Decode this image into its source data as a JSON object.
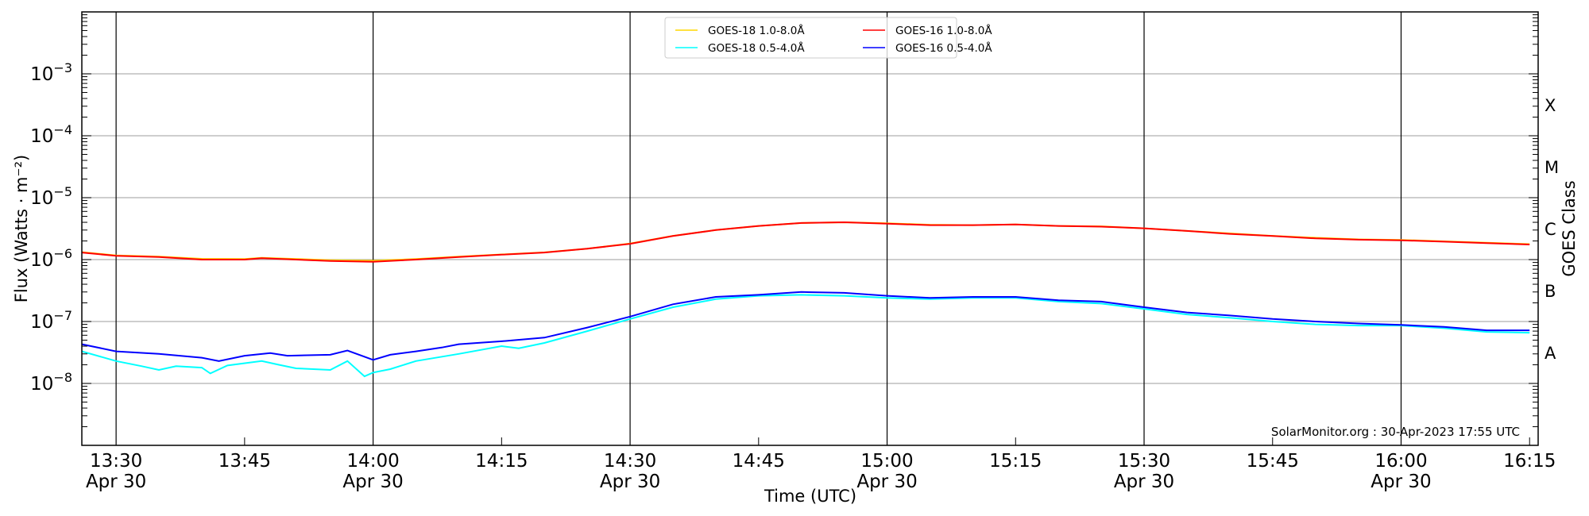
{
  "chart_data": {
    "type": "line",
    "xlabel": "Time (UTC)",
    "ylabel": "Flux (Watts · m⁻²)",
    "ylabel_right": "GOES Class",
    "yscale": "log",
    "ylim": [
      1e-09,
      0.01
    ],
    "xlim": [
      "13:26",
      "16:16"
    ],
    "x_ticks": [
      {
        "time": "13:30",
        "label": "13:30",
        "date": "Apr 30"
      },
      {
        "time": "13:45",
        "label": "13:45",
        "date": ""
      },
      {
        "time": "14:00",
        "label": "14:00",
        "date": "Apr 30"
      },
      {
        "time": "14:15",
        "label": "14:15",
        "date": ""
      },
      {
        "time": "14:30",
        "label": "14:30",
        "date": "Apr 30"
      },
      {
        "time": "14:45",
        "label": "14:45",
        "date": ""
      },
      {
        "time": "15:00",
        "label": "15:00",
        "date": "Apr 30"
      },
      {
        "time": "15:15",
        "label": "15:15",
        "date": ""
      },
      {
        "time": "15:30",
        "label": "15:30",
        "date": "Apr 30"
      },
      {
        "time": "15:45",
        "label": "15:45",
        "date": ""
      },
      {
        "time": "16:00",
        "label": "16:00",
        "date": "Apr 30"
      },
      {
        "time": "16:15",
        "label": "16:15",
        "date": ""
      }
    ],
    "y_ticks": [
      {
        "exp": -3,
        "label": "10",
        "sup": "−3"
      },
      {
        "exp": -4,
        "label": "10",
        "sup": "−4"
      },
      {
        "exp": -5,
        "label": "10",
        "sup": "−5"
      },
      {
        "exp": -6,
        "label": "10",
        "sup": "−6"
      },
      {
        "exp": -7,
        "label": "10",
        "sup": "−7"
      },
      {
        "exp": -8,
        "label": "10",
        "sup": "−8"
      }
    ],
    "goes_classes": [
      {
        "label": "X",
        "exp": -3.5
      },
      {
        "label": "M",
        "exp": -4.5
      },
      {
        "label": "C",
        "exp": -5.5
      },
      {
        "label": "B",
        "exp": -6.5
      },
      {
        "label": "A",
        "exp": -7.5
      }
    ],
    "grid": "horizontal at decades; vertical black lines every 30 min",
    "legend": {
      "placement": "top-center",
      "columns": 2
    },
    "annotation": "SolarMonitor.org : 30-Apr-2023 17:55 UTC",
    "series": [
      {
        "name": "GOES-18 1.0-8.0Å",
        "color": "#ffd700",
        "x": [
          "13:26",
          "13:30",
          "13:35",
          "13:40",
          "13:45",
          "13:47",
          "13:55",
          "14:00",
          "14:05",
          "14:10",
          "14:15",
          "14:20",
          "14:25",
          "14:30",
          "14:35",
          "14:40",
          "14:45",
          "14:50",
          "14:55",
          "15:00",
          "15:05",
          "15:10",
          "15:15",
          "15:20",
          "15:25",
          "15:30",
          "15:35",
          "15:40",
          "15:45",
          "15:50",
          "15:55",
          "16:00",
          "16:05",
          "16:10",
          "16:15"
        ],
        "y": [
          1.32e-06,
          1.17e-06,
          1.12e-06,
          1.03e-06,
          1.02e-06,
          1.07e-06,
          9.8e-07,
          9.6e-07,
          1.02e-06,
          1.12e-06,
          1.21e-06,
          1.31e-06,
          1.5e-06,
          1.82e-06,
          2.42e-06,
          3e-06,
          3.5e-06,
          3.9e-06,
          4e-06,
          3.85e-06,
          3.65e-06,
          3.6e-06,
          3.7e-06,
          3.5e-06,
          3.45e-06,
          3.2e-06,
          2.9e-06,
          2.65e-06,
          2.42e-06,
          2.25e-06,
          2.12e-06,
          2.08e-06,
          1.97e-06,
          1.87e-06,
          1.78e-06
        ]
      },
      {
        "name": "GOES-18 0.5-4.0Å",
        "color": "#00ffff",
        "x": [
          "13:26",
          "13:30",
          "13:33",
          "13:35",
          "13:37",
          "13:40",
          "13:41",
          "13:43",
          "13:47",
          "13:49",
          "13:51",
          "13:55",
          "13:57",
          "13:59",
          "14:00",
          "14:02",
          "14:05",
          "14:10",
          "14:15",
          "14:17",
          "14:20",
          "14:25",
          "14:30",
          "14:35",
          "14:40",
          "14:45",
          "14:50",
          "14:55",
          "15:00",
          "15:05",
          "15:10",
          "15:15",
          "15:20",
          "15:25",
          "15:30",
          "15:35",
          "15:40",
          "15:45",
          "15:50",
          "15:55",
          "16:00",
          "16:05",
          "16:10",
          "16:15"
        ],
        "y": [
          3.3e-08,
          2.3e-08,
          1.9e-08,
          1.65e-08,
          1.9e-08,
          1.8e-08,
          1.45e-08,
          1.95e-08,
          2.3e-08,
          2e-08,
          1.75e-08,
          1.65e-08,
          2.3e-08,
          1.3e-08,
          1.5e-08,
          1.7e-08,
          2.3e-08,
          3e-08,
          4e-08,
          3.7e-08,
          4.5e-08,
          7e-08,
          1.1e-07,
          1.7e-07,
          2.3e-07,
          2.6e-07,
          2.7e-07,
          2.6e-07,
          2.4e-07,
          2.3e-07,
          2.4e-07,
          2.4e-07,
          2.1e-07,
          1.95e-07,
          1.6e-07,
          1.3e-07,
          1.15e-07,
          1e-07,
          9e-08,
          8.6e-08,
          8.6e-08,
          7.8e-08,
          6.8e-08,
          6.6e-08
        ]
      },
      {
        "name": "GOES-16 1.0-8.0Å",
        "color": "#ff0000",
        "x": [
          "13:26",
          "13:30",
          "13:35",
          "13:40",
          "13:45",
          "13:47",
          "13:55",
          "14:00",
          "14:05",
          "14:10",
          "14:15",
          "14:20",
          "14:25",
          "14:30",
          "14:35",
          "14:40",
          "14:45",
          "14:50",
          "14:55",
          "15:00",
          "15:05",
          "15:10",
          "15:15",
          "15:20",
          "15:25",
          "15:30",
          "15:35",
          "15:40",
          "15:45",
          "15:50",
          "15:55",
          "16:00",
          "16:05",
          "16:10",
          "16:15"
        ],
        "y": [
          1.3e-06,
          1.15e-06,
          1.1e-06,
          1e-06,
          1e-06,
          1.05e-06,
          9.5e-07,
          9.2e-07,
          1e-06,
          1.1e-06,
          1.2e-06,
          1.3e-06,
          1.5e-06,
          1.8e-06,
          2.4e-06,
          3e-06,
          3.5e-06,
          3.9e-06,
          4e-06,
          3.8e-06,
          3.6e-06,
          3.6e-06,
          3.7e-06,
          3.5e-06,
          3.4e-06,
          3.2e-06,
          2.9e-06,
          2.6e-06,
          2.4e-06,
          2.2e-06,
          2.1e-06,
          2.05e-06,
          1.95e-06,
          1.85e-06,
          1.75e-06
        ]
      },
      {
        "name": "GOES-16 0.5-4.0Å",
        "color": "#0000ff",
        "x": [
          "13:26",
          "13:30",
          "13:35",
          "13:40",
          "13:42",
          "13:45",
          "13:48",
          "13:50",
          "13:55",
          "13:57",
          "14:00",
          "14:02",
          "14:05",
          "14:08",
          "14:10",
          "14:15",
          "14:20",
          "14:25",
          "14:30",
          "14:35",
          "14:40",
          "14:45",
          "14:50",
          "14:55",
          "15:00",
          "15:05",
          "15:10",
          "15:15",
          "15:20",
          "15:25",
          "15:30",
          "15:35",
          "15:40",
          "15:45",
          "15:50",
          "15:55",
          "16:00",
          "16:05",
          "16:10",
          "16:15"
        ],
        "y": [
          4.3e-08,
          3.3e-08,
          3e-08,
          2.6e-08,
          2.3e-08,
          2.8e-08,
          3.1e-08,
          2.8e-08,
          2.9e-08,
          3.4e-08,
          2.4e-08,
          2.9e-08,
          3.3e-08,
          3.8e-08,
          4.3e-08,
          4.8e-08,
          5.5e-08,
          8e-08,
          1.2e-07,
          1.9e-07,
          2.5e-07,
          2.7e-07,
          3e-07,
          2.9e-07,
          2.6e-07,
          2.4e-07,
          2.5e-07,
          2.5e-07,
          2.2e-07,
          2.1e-07,
          1.7e-07,
          1.4e-07,
          1.25e-07,
          1.1e-07,
          1e-07,
          9.3e-08,
          8.8e-08,
          8.2e-08,
          7.2e-08,
          7.2e-08
        ]
      }
    ]
  }
}
